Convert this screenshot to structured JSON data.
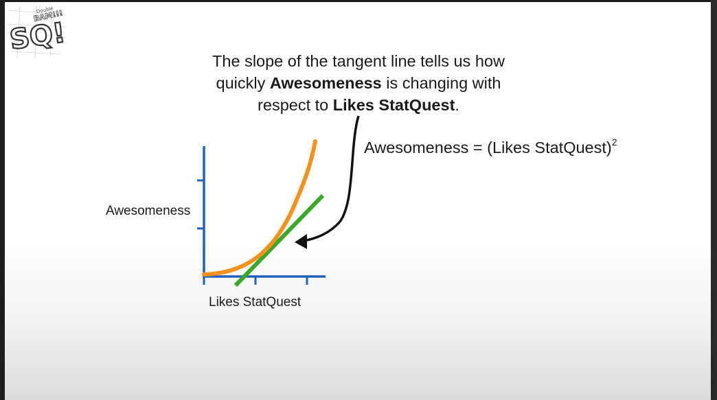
{
  "caption": {
    "line1": "The slope of the tangent line tells us how",
    "line2_pre": "quickly ",
    "line2_bold": "Awesomeness",
    "line2_post": " is changing with",
    "line3_pre": "respect to ",
    "line3_bold": "Likes StatQuest",
    "line3_post": "."
  },
  "equation": {
    "text": "Awesomeness = (Likes StatQuest)",
    "exponent": "2"
  },
  "axes": {
    "ylabel": "Awesomeness",
    "xlabel": "Likes StatQuest"
  },
  "logo": {
    "main": "SQ!",
    "small": "BAM!!!",
    "tiny": "Double"
  },
  "colors": {
    "curve": "#f5921e",
    "tangent": "#3aa829",
    "axis": "#1f5fbf",
    "arrow": "#111111"
  }
}
